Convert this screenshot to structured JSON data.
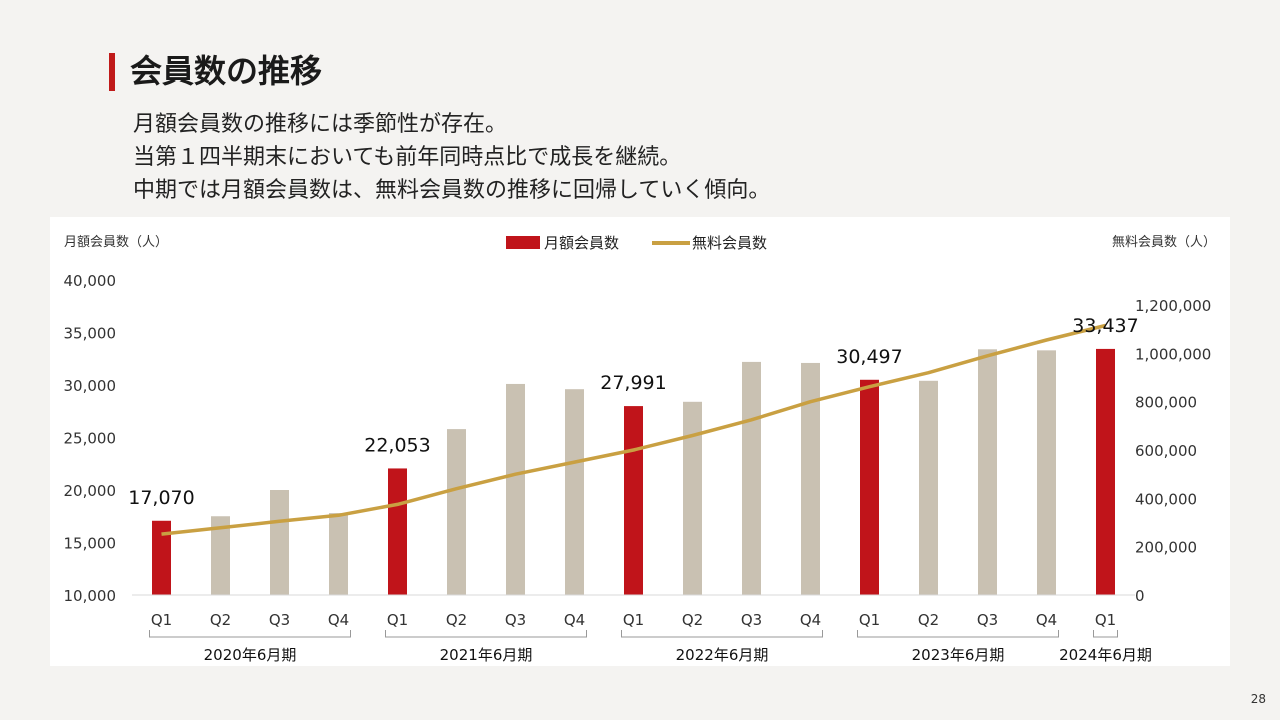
{
  "slide": {
    "title": "会員数の推移",
    "bullets": [
      "月額会員数の推移には季節性が存在。",
      "当第１四半期末においても前年同時点比で成長を継続。",
      "中期では月額会員数は、無料会員数の推移に回帰していく傾向。"
    ],
    "page_number": "28"
  },
  "colors": {
    "accent": "#c01a1a",
    "bar_highlight": "#c0141a",
    "bar_other": "#c9c1b2",
    "line": "#c9a042"
  },
  "chart_data": {
    "type": "bar",
    "left_axis_title": "月額会員数（人）",
    "right_axis_title": "無料会員数（人）",
    "legend": [
      {
        "label": "月額会員数",
        "kind": "bar"
      },
      {
        "label": "無料会員数",
        "kind": "line"
      }
    ],
    "legend_position": "top-center",
    "categories": [
      "Q1",
      "Q2",
      "Q3",
      "Q4",
      "Q1",
      "Q2",
      "Q3",
      "Q4",
      "Q1",
      "Q2",
      "Q3",
      "Q4",
      "Q1",
      "Q2",
      "Q3",
      "Q4",
      "Q1"
    ],
    "groups": [
      {
        "label": "2020年6月期",
        "count": 4
      },
      {
        "label": "2021年6月期",
        "count": 4
      },
      {
        "label": "2022年6月期",
        "count": 4
      },
      {
        "label": "2023年6月期",
        "count": 4
      },
      {
        "label": "2024年6月期",
        "count": 1
      }
    ],
    "series": [
      {
        "name": "月額会員数",
        "axis": "left",
        "values": [
          17070,
          17500,
          20000,
          17800,
          22053,
          25800,
          30100,
          29600,
          27991,
          28400,
          32200,
          32100,
          30497,
          30400,
          33400,
          33300,
          33437
        ],
        "highlight": [
          true,
          false,
          false,
          false,
          true,
          false,
          false,
          false,
          true,
          false,
          false,
          false,
          true,
          false,
          false,
          false,
          true
        ],
        "data_labels": [
          "17,070",
          "",
          "",
          "",
          "22,053",
          "",
          "",
          "",
          "27,991",
          "",
          "",
          "",
          "30,497",
          "",
          "",
          "",
          "33,437"
        ]
      },
      {
        "name": "無料会員数",
        "axis": "right",
        "values": [
          252000,
          278000,
          305000,
          330000,
          375000,
          440000,
          500000,
          550000,
          600000,
          660000,
          725000,
          800000,
          862000,
          920000,
          990000,
          1055000,
          1115000
        ]
      }
    ],
    "left_ylim": [
      10000,
      40000
    ],
    "left_ticks": [
      "10,000",
      "15,000",
      "20,000",
      "25,000",
      "30,000",
      "35,000",
      "40,000"
    ],
    "right_ylim": [
      0,
      1200000
    ],
    "right_ticks": [
      "0",
      "200,000",
      "400,000",
      "600,000",
      "800,000",
      "1,000,000",
      "1,200,000"
    ],
    "grid": false
  }
}
